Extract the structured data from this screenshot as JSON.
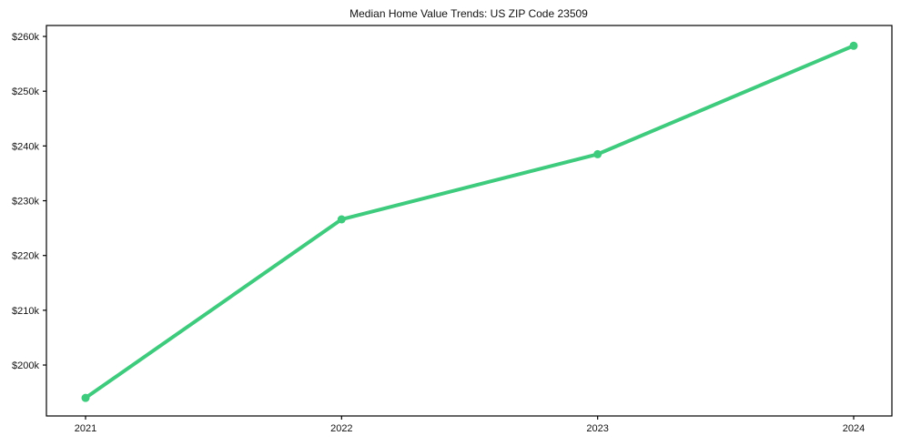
{
  "title": "Median Home Value Trends: US ZIP Code 23509",
  "chart_data": {
    "type": "line",
    "title": "Median Home Value Trends: US ZIP Code 23509",
    "categories": [
      "2021",
      "2022",
      "2023",
      "2024"
    ],
    "series": [
      {
        "name": "Median Home Value",
        "values": [
          194000,
          226600,
          238500,
          258300
        ]
      }
    ],
    "xlabel": "",
    "ylabel": "",
    "ylim": [
      190700,
      262000
    ],
    "yticks": [
      200000,
      210000,
      220000,
      230000,
      240000,
      250000,
      260000
    ],
    "ytick_labels": [
      "$200k",
      "$210k",
      "$220k",
      "$230k",
      "$240k",
      "$250k",
      "$260k"
    ],
    "grid": false,
    "legend_position": "none",
    "colors": {
      "line": "#3ecb7d",
      "marker": "#3ecb7d",
      "axis": "#000000",
      "text": "#111111",
      "background": "#ffffff"
    }
  }
}
